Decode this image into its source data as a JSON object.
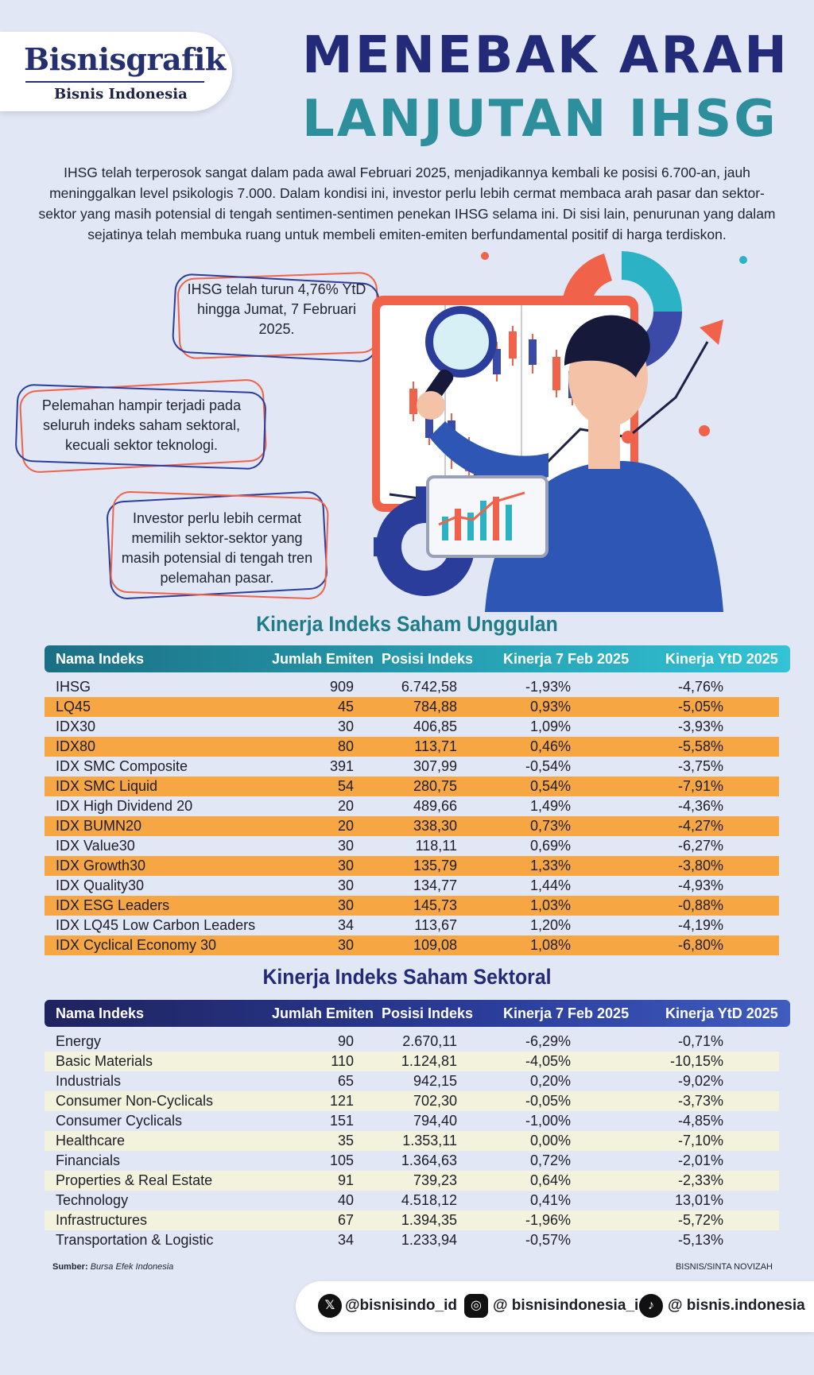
{
  "brand": {
    "name": "Bisnisgrafik",
    "sub": "Bisnis Indonesia"
  },
  "title": {
    "line1": "MENEBAK ARAH",
    "line2": "LANJUTAN IHSG"
  },
  "intro": "IHSG telah terperosok sangat dalam pada awal Februari 2025, menjadikannya kembali ke posisi 6.700-an, jauh meninggalkan level psikologis 7.000. Dalam kondisi ini, investor perlu lebih cermat membaca arah pasar dan sektor-sektor yang masih potensial di tengah sentimen-sentimen penekan IHSG selama ini. Di sisi lain, penurunan yang dalam sejatinya telah membuka ruang untuk membeli emiten-emiten berfundamental positif di harga terdiskon.",
  "callouts": [
    "IHSG telah turun 4,76% YtD hingga Jumat, 7 Februari 2025.",
    "Pelemahan hampir terjadi pada seluruh indeks saham sektoral, kecuali sektor teknologi.",
    "Investor perlu lebih cermat memilih sektor-sektor yang masih potensial di tengah tren pelemahan pasar."
  ],
  "colors": {
    "navy": "#232b78",
    "teal": "#2e8f9c",
    "orange": "#f6a744",
    "cream": "#f3f3dd",
    "red": "#f0624a"
  },
  "table1": {
    "title": "Kinerja Indeks Saham Unggulan",
    "headers": [
      "Nama Indeks",
      "Jumlah Emiten",
      "Posisi Indeks",
      "Kinerja 7 Feb 2025",
      "Kinerja YtD 2025"
    ],
    "rows": [
      [
        "IHSG",
        "909",
        "6.742,58",
        "-1,93%",
        "-4,76%"
      ],
      [
        "LQ45",
        "45",
        "784,88",
        "0,93%",
        "-5,05%"
      ],
      [
        "IDX30",
        "30",
        "406,85",
        "1,09%",
        "-3,93%"
      ],
      [
        "IDX80",
        "80",
        "113,71",
        "0,46%",
        "-5,58%"
      ],
      [
        "IDX SMC Composite",
        "391",
        "307,99",
        "-0,54%",
        "-3,75%"
      ],
      [
        "IDX SMC Liquid",
        "54",
        "280,75",
        "0,54%",
        "-7,91%"
      ],
      [
        "IDX High Dividend 20",
        "20",
        "489,66",
        "1,49%",
        "-4,36%"
      ],
      [
        "IDX BUMN20",
        "20",
        "338,30",
        "0,73%",
        "-4,27%"
      ],
      [
        "IDX Value30",
        "30",
        "118,11",
        "0,69%",
        "-6,27%"
      ],
      [
        "IDX Growth30",
        "30",
        "135,79",
        "1,33%",
        "-3,80%"
      ],
      [
        "IDX Quality30",
        "30",
        "134,77",
        "1,44%",
        "-4,93%"
      ],
      [
        "IDX ESG Leaders",
        "30",
        "145,73",
        "1,03%",
        "-0,88%"
      ],
      [
        "IDX LQ45 Low Carbon Leaders",
        "34",
        "113,67",
        "1,20%",
        "-4,19%"
      ],
      [
        "IDX Cyclical Economy 30",
        "30",
        "109,08",
        "1,08%",
        "-6,80%"
      ]
    ]
  },
  "table2": {
    "title": "Kinerja Indeks Saham Sektoral",
    "headers": [
      "Nama Indeks",
      "Jumlah Emiten",
      "Posisi Indeks",
      "Kinerja 7 Feb 2025",
      "Kinerja YtD 2025"
    ],
    "rows": [
      [
        "Energy",
        "90",
        "2.670,11",
        "-6,29%",
        "-0,71%"
      ],
      [
        "Basic Materials",
        "110",
        "1.124,81",
        "-4,05%",
        "-10,15%"
      ],
      [
        "Industrials",
        "65",
        "942,15",
        "0,20%",
        "-9,02%"
      ],
      [
        "Consumer Non-Cyclicals",
        "121",
        "702,30",
        "-0,05%",
        "-3,73%"
      ],
      [
        "Consumer Cyclicals",
        "151",
        "794,40",
        "-1,00%",
        "-4,85%"
      ],
      [
        "Healthcare",
        "35",
        "1.353,11",
        "0,00%",
        "-7,10%"
      ],
      [
        "Financials",
        "105",
        "1.364,63",
        "0,72%",
        "-2,01%"
      ],
      [
        "Properties & Real Estate",
        "91",
        "739,23",
        "0,64%",
        "-2,33%"
      ],
      [
        "Technology",
        "40",
        "4.518,12",
        "0,41%",
        "13,01%"
      ],
      [
        "Infrastructures",
        "67",
        "1.394,35",
        "-1,96%",
        "-5,72%"
      ],
      [
        "Transportation & Logistic",
        "34",
        "1.233,94",
        "-0,57%",
        "-5,13%"
      ]
    ]
  },
  "source_label": "Sumber:",
  "source_value": "Bursa Efek Indonesia",
  "credit": "BISNIS/SINTA NOVIZAH",
  "social": [
    {
      "icon": "x-icon",
      "handle": "@bisnisindo_id"
    },
    {
      "icon": "instagram-icon",
      "handle": "@ bisnisindonesia_id"
    },
    {
      "icon": "tiktok-icon",
      "handle": "@ bisnis.indonesia"
    }
  ]
}
